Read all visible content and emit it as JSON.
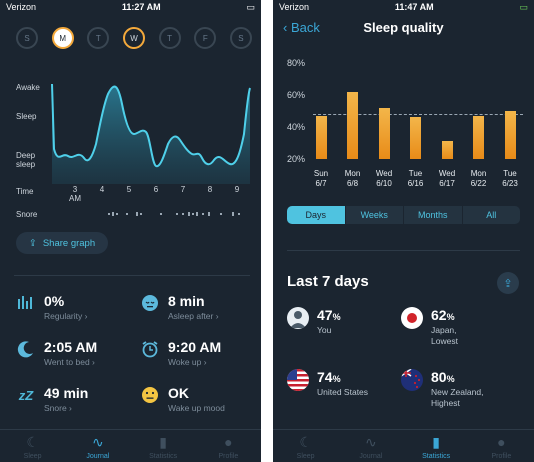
{
  "left": {
    "status": {
      "carrier": "Verizon",
      "time": "11:27 AM"
    },
    "days": [
      "S",
      "M",
      "T",
      "W",
      "T",
      "F",
      "S"
    ],
    "y_labels": {
      "awake": "Awake",
      "sleep": "Sleep",
      "deep": "Deep sleep"
    },
    "x_title": "Time",
    "x_hours": [
      "3",
      "4",
      "5",
      "6",
      "7",
      "8",
      "9"
    ],
    "x_am": "AM",
    "snore_label": "Snore",
    "share_label": "Share graph",
    "stats": [
      {
        "value": "0%",
        "label": "Regularity ›",
        "icon": "regularity-icon"
      },
      {
        "value": "8 min",
        "label": "Asleep after ›",
        "icon": "asleep-face-icon"
      },
      {
        "value": "2:05 AM",
        "label": "Went to bed ›",
        "icon": "moon-icon"
      },
      {
        "value": "9:20 AM",
        "label": "Woke up ›",
        "icon": "alarm-clock-icon"
      },
      {
        "value": "49 min",
        "label": "Snore ›",
        "icon": "zzz-icon"
      },
      {
        "value": "OK",
        "label": "Wake up mood",
        "icon": "mood-face-icon"
      }
    ],
    "tabs": [
      "Sleep",
      "Journal",
      "Statistics",
      "Profile"
    ],
    "active_tab": "Journal",
    "accent": "#3ba7d6",
    "ring_color": "#f4a93b"
  },
  "right": {
    "status": {
      "carrier": "Verizon",
      "time": "11:47 AM"
    },
    "back_label": "Back",
    "title": "Sleep quality",
    "chart_data": {
      "type": "bar",
      "categories": [
        "Sun 6/7",
        "Mon 6/8",
        "Wed 6/10",
        "Tue 6/16",
        "Wed 6/17",
        "Mon 6/22",
        "Tue 6/23"
      ],
      "values": [
        47,
        62,
        52,
        46,
        31,
        47,
        50
      ],
      "y_ticks": [
        "80%",
        "60%",
        "40%",
        "20%"
      ],
      "ylim": [
        20,
        80
      ],
      "reference_line": 48,
      "bar_color": "#f0a030"
    },
    "segments": [
      "Days",
      "Weeks",
      "Months",
      "All"
    ],
    "active_segment": "Days",
    "last_title": "Last 7 days",
    "comparisons": [
      {
        "pct": "47",
        "unit": "%",
        "lines": [
          "You"
        ],
        "flag": "user-avatar-icon"
      },
      {
        "pct": "62",
        "unit": "%",
        "lines": [
          "Japan,",
          "Lowest"
        ],
        "flag": "japan-flag-icon"
      },
      {
        "pct": "74",
        "unit": "%",
        "lines": [
          "United States"
        ],
        "flag": "usa-flag-icon"
      },
      {
        "pct": "80",
        "unit": "%",
        "lines": [
          "New Zealand,",
          "Highest"
        ],
        "flag": "new-zealand-flag-icon"
      }
    ],
    "tabs": [
      "Sleep",
      "Journal",
      "Statistics",
      "Profile"
    ],
    "active_tab": "Statistics"
  }
}
